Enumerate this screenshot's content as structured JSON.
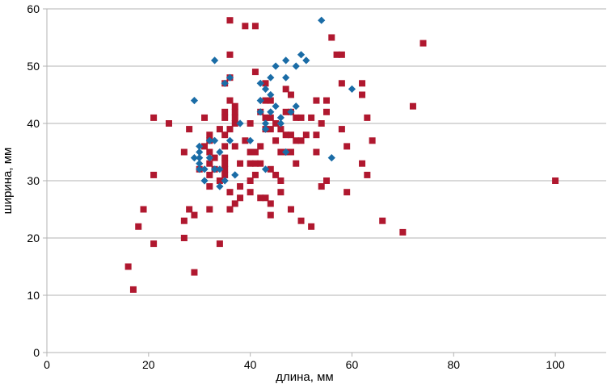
{
  "chart_data": {
    "type": "scatter",
    "title": "",
    "xlabel": "длина, мм",
    "ylabel": "ширина, мм",
    "xlim": [
      0,
      110
    ],
    "ylim": [
      0,
      60
    ],
    "x_ticks": [
      0,
      20,
      40,
      60,
      80,
      100
    ],
    "y_ticks": [
      0,
      10,
      20,
      30,
      40,
      50,
      60
    ],
    "x_tick_labels": [
      "0",
      "20",
      "40",
      "60",
      "80",
      "100"
    ],
    "y_tick_labels": [
      "0",
      "10",
      "20",
      "30",
      "40",
      "50",
      "60"
    ],
    "grid": "horizontal",
    "legend": "none",
    "series": [
      {
        "marker": "square",
        "color": "#b0182f",
        "points": [
          [
            16,
            15
          ],
          [
            17,
            11
          ],
          [
            18,
            22
          ],
          [
            19,
            25
          ],
          [
            21,
            41
          ],
          [
            21,
            31
          ],
          [
            21,
            19
          ],
          [
            24,
            40
          ],
          [
            27,
            35
          ],
          [
            27,
            23
          ],
          [
            27,
            20
          ],
          [
            28,
            39
          ],
          [
            28,
            25
          ],
          [
            29,
            24
          ],
          [
            29,
            14
          ],
          [
            30,
            32
          ],
          [
            31,
            41
          ],
          [
            31,
            36
          ],
          [
            32,
            38
          ],
          [
            32,
            37
          ],
          [
            32,
            35
          ],
          [
            32,
            33
          ],
          [
            32,
            31
          ],
          [
            32,
            29
          ],
          [
            32,
            25
          ],
          [
            33,
            34
          ],
          [
            33,
            32
          ],
          [
            34,
            39
          ],
          [
            34,
            30
          ],
          [
            34,
            19
          ],
          [
            35,
            42
          ],
          [
            35,
            41
          ],
          [
            35,
            38
          ],
          [
            35,
            36
          ],
          [
            35,
            34
          ],
          [
            35,
            33
          ],
          [
            35,
            32
          ],
          [
            35,
            31
          ],
          [
            35,
            47
          ],
          [
            36,
            58
          ],
          [
            36,
            52
          ],
          [
            36,
            48
          ],
          [
            36,
            44
          ],
          [
            36,
            39
          ],
          [
            36,
            28
          ],
          [
            36,
            25
          ],
          [
            37,
            43
          ],
          [
            37,
            42
          ],
          [
            37,
            41
          ],
          [
            37,
            40
          ],
          [
            37,
            36
          ],
          [
            37,
            26
          ],
          [
            38,
            33
          ],
          [
            38,
            29
          ],
          [
            38,
            27
          ],
          [
            39,
            57
          ],
          [
            39,
            37
          ],
          [
            40,
            40
          ],
          [
            40,
            35
          ],
          [
            40,
            33
          ],
          [
            40,
            30
          ],
          [
            40,
            28
          ],
          [
            41,
            57
          ],
          [
            41,
            49
          ],
          [
            41,
            35
          ],
          [
            41,
            33
          ],
          [
            41,
            31
          ],
          [
            42,
            42
          ],
          [
            42,
            36
          ],
          [
            42,
            33
          ],
          [
            42,
            27
          ],
          [
            43,
            47
          ],
          [
            43,
            44
          ],
          [
            43,
            41
          ],
          [
            43,
            39
          ],
          [
            43,
            27
          ],
          [
            44,
            44
          ],
          [
            44,
            41
          ],
          [
            44,
            39
          ],
          [
            44,
            32
          ],
          [
            44,
            26
          ],
          [
            44,
            24
          ],
          [
            45,
            40
          ],
          [
            45,
            37
          ],
          [
            45,
            31
          ],
          [
            46,
            39
          ],
          [
            46,
            35
          ],
          [
            46,
            30
          ],
          [
            46,
            28
          ],
          [
            47,
            46
          ],
          [
            47,
            42
          ],
          [
            47,
            38
          ],
          [
            47,
            35
          ],
          [
            48,
            45
          ],
          [
            48,
            42
          ],
          [
            48,
            38
          ],
          [
            48,
            35
          ],
          [
            48,
            25
          ],
          [
            49,
            41
          ],
          [
            49,
            37
          ],
          [
            49,
            33
          ],
          [
            50,
            41
          ],
          [
            50,
            37
          ],
          [
            50,
            23
          ],
          [
            51,
            38
          ],
          [
            52,
            41
          ],
          [
            52,
            22
          ],
          [
            53,
            44
          ],
          [
            53,
            38
          ],
          [
            53,
            35
          ],
          [
            54,
            40
          ],
          [
            54,
            29
          ],
          [
            55,
            44
          ],
          [
            55,
            42
          ],
          [
            55,
            30
          ],
          [
            56,
            55
          ],
          [
            57,
            52
          ],
          [
            58,
            52
          ],
          [
            58,
            47
          ],
          [
            58,
            39
          ],
          [
            59,
            36
          ],
          [
            59,
            28
          ],
          [
            62,
            47
          ],
          [
            62,
            45
          ],
          [
            62,
            33
          ],
          [
            63,
            41
          ],
          [
            63,
            31
          ],
          [
            64,
            37
          ],
          [
            66,
            23
          ],
          [
            70,
            21
          ],
          [
            72,
            43
          ],
          [
            74,
            54
          ],
          [
            100,
            30
          ]
        ]
      },
      {
        "marker": "diamond",
        "color": "#1a6ca6",
        "points": [
          [
            29,
            44
          ],
          [
            29,
            34
          ],
          [
            30,
            36
          ],
          [
            30,
            35
          ],
          [
            30,
            34
          ],
          [
            30,
            33
          ],
          [
            30,
            32
          ],
          [
            31,
            30
          ],
          [
            31,
            32
          ],
          [
            32,
            37
          ],
          [
            32,
            34
          ],
          [
            33,
            51
          ],
          [
            33,
            37
          ],
          [
            33,
            32
          ],
          [
            34,
            35
          ],
          [
            34,
            32
          ],
          [
            34,
            29
          ],
          [
            35,
            47
          ],
          [
            35,
            30
          ],
          [
            36,
            37
          ],
          [
            36,
            48
          ],
          [
            37,
            31
          ],
          [
            38,
            40
          ],
          [
            40,
            37
          ],
          [
            42,
            47
          ],
          [
            42,
            44
          ],
          [
            42,
            42
          ],
          [
            43,
            46
          ],
          [
            43,
            40
          ],
          [
            43,
            39
          ],
          [
            43,
            32
          ],
          [
            44,
            48
          ],
          [
            44,
            45
          ],
          [
            44,
            42
          ],
          [
            45,
            50
          ],
          [
            45,
            43
          ],
          [
            46,
            40
          ],
          [
            46,
            41
          ],
          [
            47,
            51
          ],
          [
            47,
            48
          ],
          [
            47,
            35
          ],
          [
            48,
            42
          ],
          [
            49,
            50
          ],
          [
            49,
            43
          ],
          [
            50,
            52
          ],
          [
            51,
            51
          ],
          [
            54,
            58
          ],
          [
            56,
            34
          ],
          [
            60,
            46
          ]
        ]
      }
    ]
  }
}
